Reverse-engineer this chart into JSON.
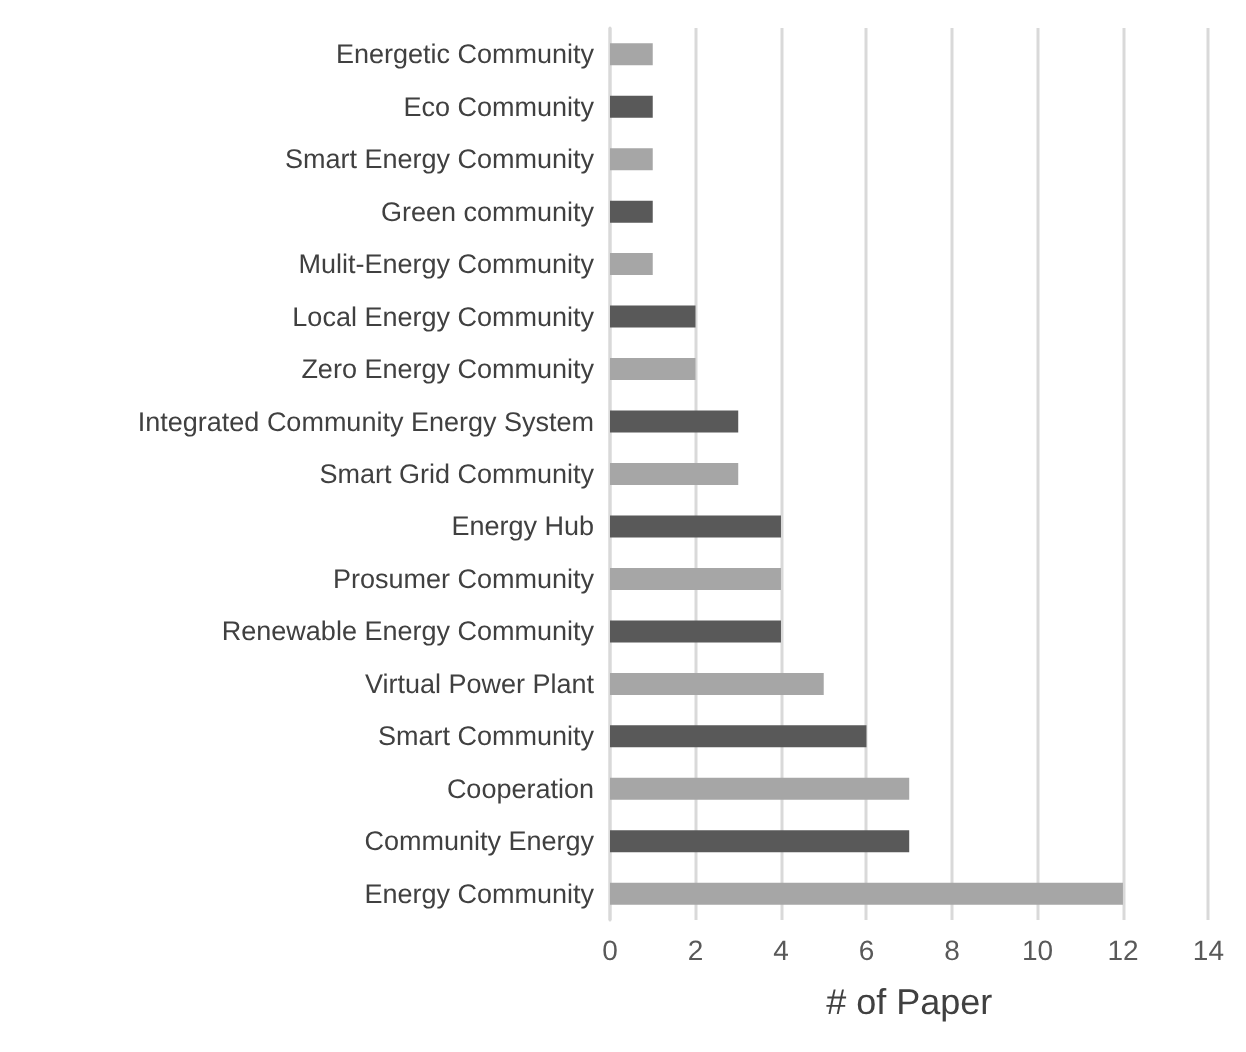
{
  "chart_data": {
    "type": "bar",
    "orientation": "horizontal",
    "xlabel": "# of Paper",
    "categories": [
      "Energetic Community",
      "Eco Community",
      "Smart Energy Community",
      "Green community",
      "Mulit-Energy Community",
      "Local Energy Community",
      "Zero Energy Community",
      "Integrated Community Energy System",
      "Smart Grid Community",
      "Energy Hub",
      "Prosumer Community",
      "Renewable Energy Community",
      "Virtual Power Plant",
      "Smart Community",
      "Cooperation",
      "Community Energy",
      "Energy Community"
    ],
    "values": [
      1,
      1,
      1,
      1,
      1,
      2,
      2,
      3,
      3,
      4,
      4,
      4,
      5,
      6,
      7,
      7,
      12
    ],
    "colors": [
      "#a6a6a6",
      "#595959",
      "#a6a6a6",
      "#595959",
      "#a6a6a6",
      "#595959",
      "#a6a6a6",
      "#595959",
      "#a6a6a6",
      "#595959",
      "#a6a6a6",
      "#595959",
      "#a6a6a6",
      "#595959",
      "#a6a6a6",
      "#595959",
      "#a6a6a6"
    ],
    "xlim": [
      0,
      14
    ],
    "xticks": [
      0,
      2,
      4,
      6,
      8,
      10,
      12,
      14
    ],
    "grid": "x"
  }
}
